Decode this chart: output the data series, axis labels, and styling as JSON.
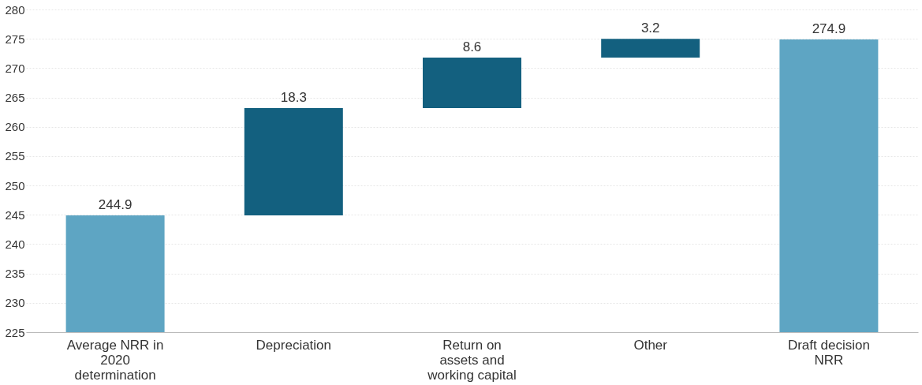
{
  "chart_data": {
    "type": "bar",
    "categories": [
      "Average NRR in 2020 determination",
      "Depreciation",
      "Return on assets and working capital",
      "Other",
      "Draft decision NRR"
    ],
    "values": [
      244.9,
      18.3,
      8.6,
      3.2,
      274.9
    ],
    "base": [
      null,
      244.9,
      263.2,
      271.8,
      null
    ],
    "colors": [
      "#5ea5c3",
      "#13607f",
      "#13607f",
      "#13607f",
      "#5ea5c3"
    ],
    "ylim": [
      225,
      280
    ],
    "yticks": [
      225,
      230,
      235,
      240,
      245,
      250,
      255,
      260,
      265,
      270,
      275,
      280
    ],
    "grid": "y",
    "data_labels": true
  }
}
